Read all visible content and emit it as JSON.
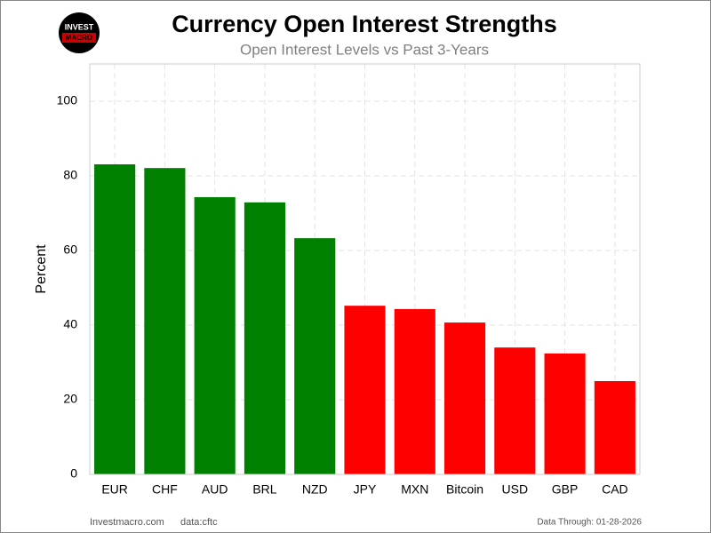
{
  "logo": {
    "line1": "INVEST",
    "line2": "MACRO"
  },
  "chart_data": {
    "type": "bar",
    "title": "Currency Open Interest Strengths",
    "subtitle": "Open Interest Levels vs Past 3-Years",
    "y_label": "Percent",
    "categories": [
      "EUR",
      "CHF",
      "AUD",
      "BRL",
      "NZD",
      "JPY",
      "MXN",
      "Bitcoin",
      "USD",
      "GBP",
      "CAD"
    ],
    "values": [
      83.1,
      82.1,
      74.3,
      72.9,
      63.3,
      45.2,
      44.3,
      40.7,
      34.0,
      32.4,
      25.0
    ],
    "colors": [
      "#008000",
      "#008000",
      "#008000",
      "#008000",
      "#008000",
      "#ff0000",
      "#ff0000",
      "#ff0000",
      "#ff0000",
      "#ff0000",
      "#ff0000"
    ],
    "ylim": [
      0,
      110
    ],
    "yticks": [
      0,
      20,
      40,
      60,
      80,
      100
    ],
    "grid": true
  },
  "footer": {
    "site": "Investmacro.com",
    "source": "data:cftc",
    "date": "Data Through: 01-28-2026"
  }
}
